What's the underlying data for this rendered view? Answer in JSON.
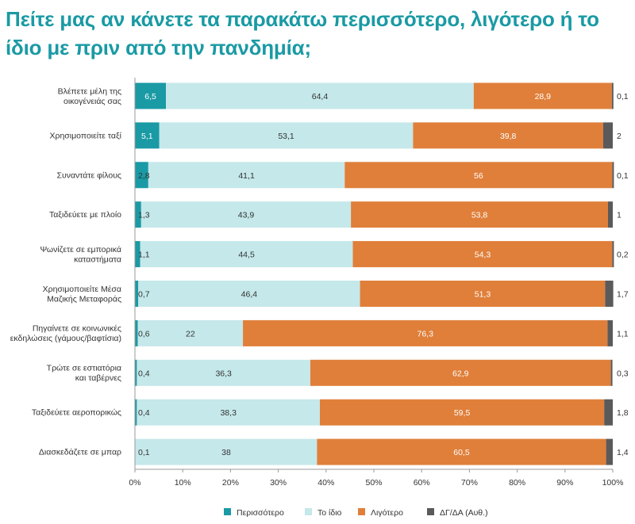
{
  "title": "Πείτε μας αν κάνετε τα παρακάτω περισσότερο, λιγότερο ή το ίδιο με πριν από την πανδημία;",
  "colors": {
    "more": "#1a9aa4",
    "same": "#c5e8ea",
    "less": "#e07f3a",
    "dk": "#5a5a5a"
  },
  "chart_data": {
    "type": "bar",
    "orientation": "horizontal-stacked-100",
    "categories": [
      [
        "Βλέπετε μέλη της",
        "οικογένειάς σας"
      ],
      [
        "Χρησιμοποιείτε ταξί"
      ],
      [
        "Συναντάτε φίλους"
      ],
      [
        "Ταξιδεύετε με πλοίο"
      ],
      [
        "Ψωνίζετε σε εμπορικά",
        "καταστήματα"
      ],
      [
        "Χρησιμοποιείτε Μέσα",
        "Μαζικής Μεταφοράς"
      ],
      [
        "Πηγαίνετε σε κοινωνικές",
        "εκδηλώσεις (γάμους/βαφτίσια)"
      ],
      [
        "Τρώτε σε εστιατόρια",
        "και ταβέρνες"
      ],
      [
        "Ταξιδεύετε αεροπορικώς"
      ],
      [
        "Διασκεδάζετε σε μπαρ"
      ]
    ],
    "series": [
      {
        "name": "Περισσότερο",
        "color": "#1a9aa4",
        "values": [
          6.5,
          5.1,
          2.8,
          1.3,
          1.1,
          0.7,
          0.6,
          0.4,
          0.4,
          0.1
        ],
        "labels": [
          "6,5",
          "5,1",
          "2,8",
          "1,3",
          "1,1",
          "0,7",
          "0,6",
          "0,4",
          "0,4",
          "0,1"
        ]
      },
      {
        "name": "Το ίδιο",
        "color": "#c5e8ea",
        "values": [
          64.4,
          53.1,
          41.1,
          43.9,
          44.5,
          46.4,
          22,
          36.3,
          38.3,
          38
        ],
        "labels": [
          "64,4",
          "53,1",
          "41,1",
          "43,9",
          "44,5",
          "46,4",
          "22",
          "36,3",
          "38,3",
          "38"
        ]
      },
      {
        "name": "Λιγότερο",
        "color": "#e07f3a",
        "values": [
          28.9,
          39.8,
          56,
          53.8,
          54.3,
          51.3,
          76.3,
          62.9,
          59.5,
          60.5
        ],
        "labels": [
          "28,9",
          "39,8",
          "56",
          "53,8",
          "54,3",
          "51,3",
          "76,3",
          "62,9",
          "59,5",
          "60,5"
        ]
      },
      {
        "name": "ΔΓ/ΔΑ (Αυθ.)",
        "color": "#5a5a5a",
        "values": [
          0.1,
          2,
          0.1,
          1,
          0.2,
          1.7,
          1.1,
          0.3,
          1.8,
          1.4
        ],
        "labels": [
          "0,1",
          "2",
          "0,1",
          "1",
          "0,2",
          "1,7",
          "1,1",
          "0,3",
          "1,8",
          "1,4"
        ]
      }
    ],
    "xlim": [
      0,
      100
    ],
    "xticks": [
      "0%",
      "10%",
      "20%",
      "30%",
      "40%",
      "50%",
      "60%",
      "70%",
      "80%",
      "90%",
      "100%"
    ],
    "grid": false,
    "legend_position": "bottom"
  }
}
